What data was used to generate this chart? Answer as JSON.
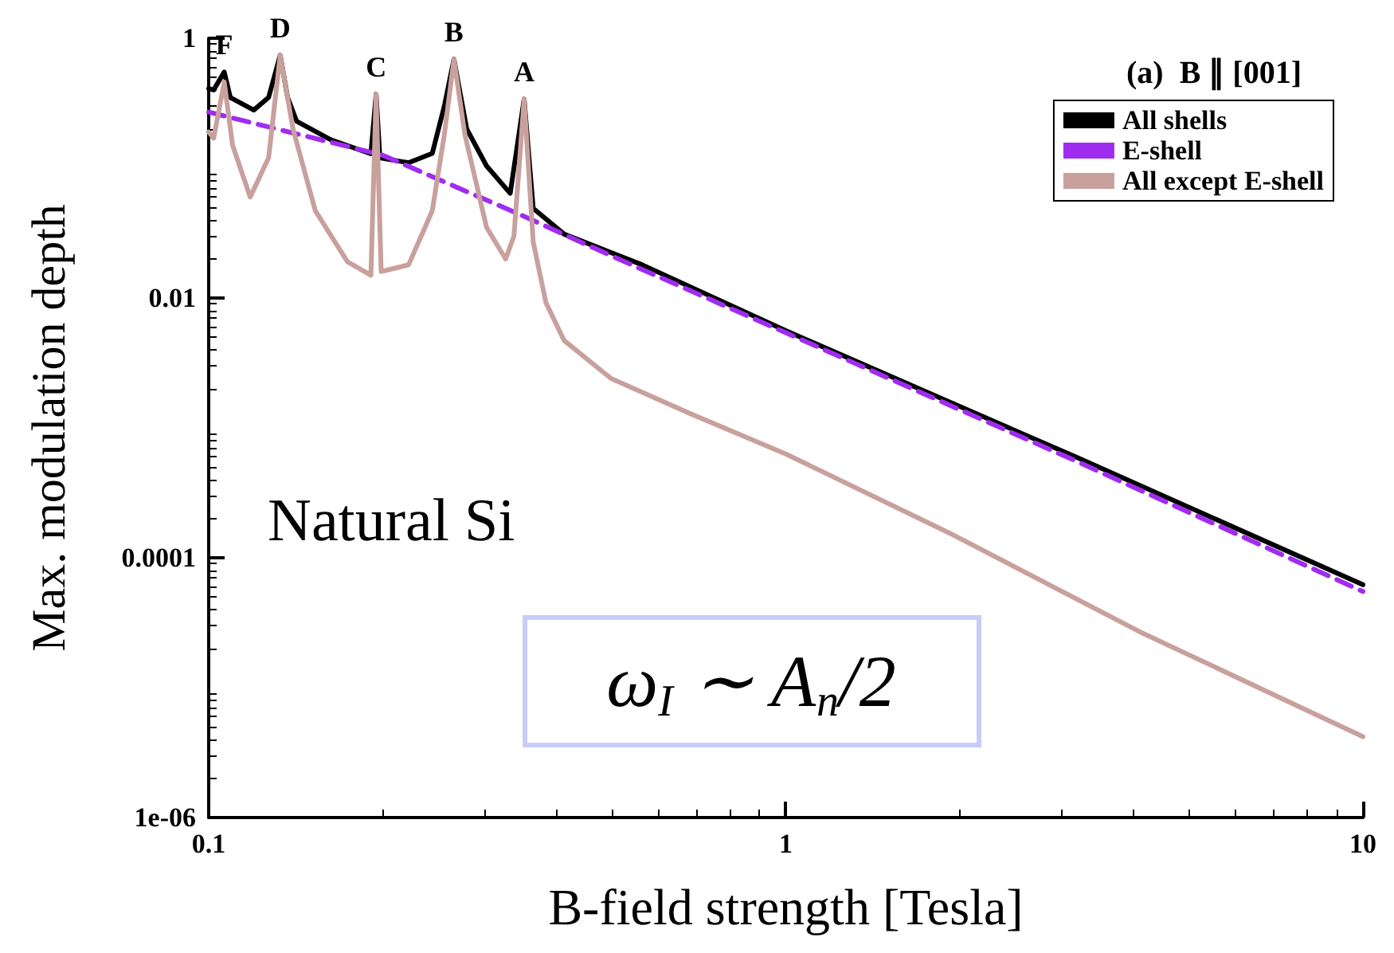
{
  "chart_data": {
    "type": "line",
    "xlabel": "B-field strength [Tesla]",
    "ylabel": "Max. modulation depth",
    "legend_title": "(a)  B ∥ [001]",
    "log": "xy",
    "grid": false,
    "legend": "top right",
    "xlim": [
      0.1,
      10
    ],
    "xticks": [
      0.1,
      1,
      10
    ],
    "ylim": [
      1e-06,
      1
    ],
    "yticks": [
      {
        "value": 1e-06,
        "label": "1e-06"
      },
      0.0001,
      0.01,
      1
    ],
    "series": [
      {
        "name": "All shells",
        "color": "#000000",
        "line_style": "solid",
        "x": [
          0.1,
          0.102,
          0.1064,
          0.109,
          0.1197,
          0.127,
          0.133,
          0.137,
          0.142,
          0.163,
          0.191,
          0.195,
          0.198,
          0.222,
          0.244,
          0.256,
          0.266,
          0.28,
          0.303,
          0.333,
          0.352,
          0.365,
          0.413,
          0.564,
          1,
          3.2,
          10
        ],
        "values": [
          0.41,
          0.4,
          0.55,
          0.35,
          0.28,
          0.35,
          0.74,
          0.35,
          0.23,
          0.165,
          0.129,
          0.37,
          0.12,
          0.11,
          0.13,
          0.3,
          0.69,
          0.2,
          0.104,
          0.064,
          0.34,
          0.049,
          0.031,
          0.018,
          0.0056,
          0.00059,
          6.2e-05
        ]
      },
      {
        "name": "E-shell",
        "color": "#a02cf0",
        "line_style": "dashed",
        "x": [
          0.1,
          0.2,
          0.35,
          0.5,
          1,
          3.2,
          10
        ],
        "values": [
          0.27,
          0.126,
          0.043,
          0.021,
          0.0054,
          0.00055,
          5.5e-05
        ]
      },
      {
        "name": "All except E-shell",
        "color": "#c8a09c",
        "line_style": "solid",
        "x": [
          0.1,
          0.102,
          0.1064,
          0.11,
          0.118,
          0.127,
          0.133,
          0.14,
          0.153,
          0.174,
          0.191,
          0.195,
          0.199,
          0.222,
          0.244,
          0.256,
          0.266,
          0.278,
          0.303,
          0.327,
          0.338,
          0.352,
          0.365,
          0.384,
          0.413,
          0.498,
          0.68,
          1,
          1.95,
          4.1,
          10
        ],
        "values": [
          0.19,
          0.17,
          0.46,
          0.15,
          0.06,
          0.12,
          0.74,
          0.2,
          0.047,
          0.019,
          0.015,
          0.37,
          0.016,
          0.018,
          0.047,
          0.18,
          0.69,
          0.18,
          0.035,
          0.02,
          0.03,
          0.34,
          0.027,
          0.0092,
          0.0047,
          0.0024,
          0.0013,
          0.00063,
          0.00015,
          2.7e-05,
          4.2e-06
        ]
      }
    ],
    "annotations": [
      {
        "text": "F",
        "x": 0.1064,
        "y": 0.55
      },
      {
        "text": "D",
        "x": 0.133,
        "y": 0.74
      },
      {
        "text": "C",
        "x": 0.195,
        "y": 0.37
      },
      {
        "text": "B",
        "x": 0.266,
        "y": 0.69
      },
      {
        "text": "A",
        "x": 0.352,
        "y": 0.34
      },
      "Natural Si",
      "ω$_{I}$ ∼ A$_{n}$/2"
    ]
  }
}
